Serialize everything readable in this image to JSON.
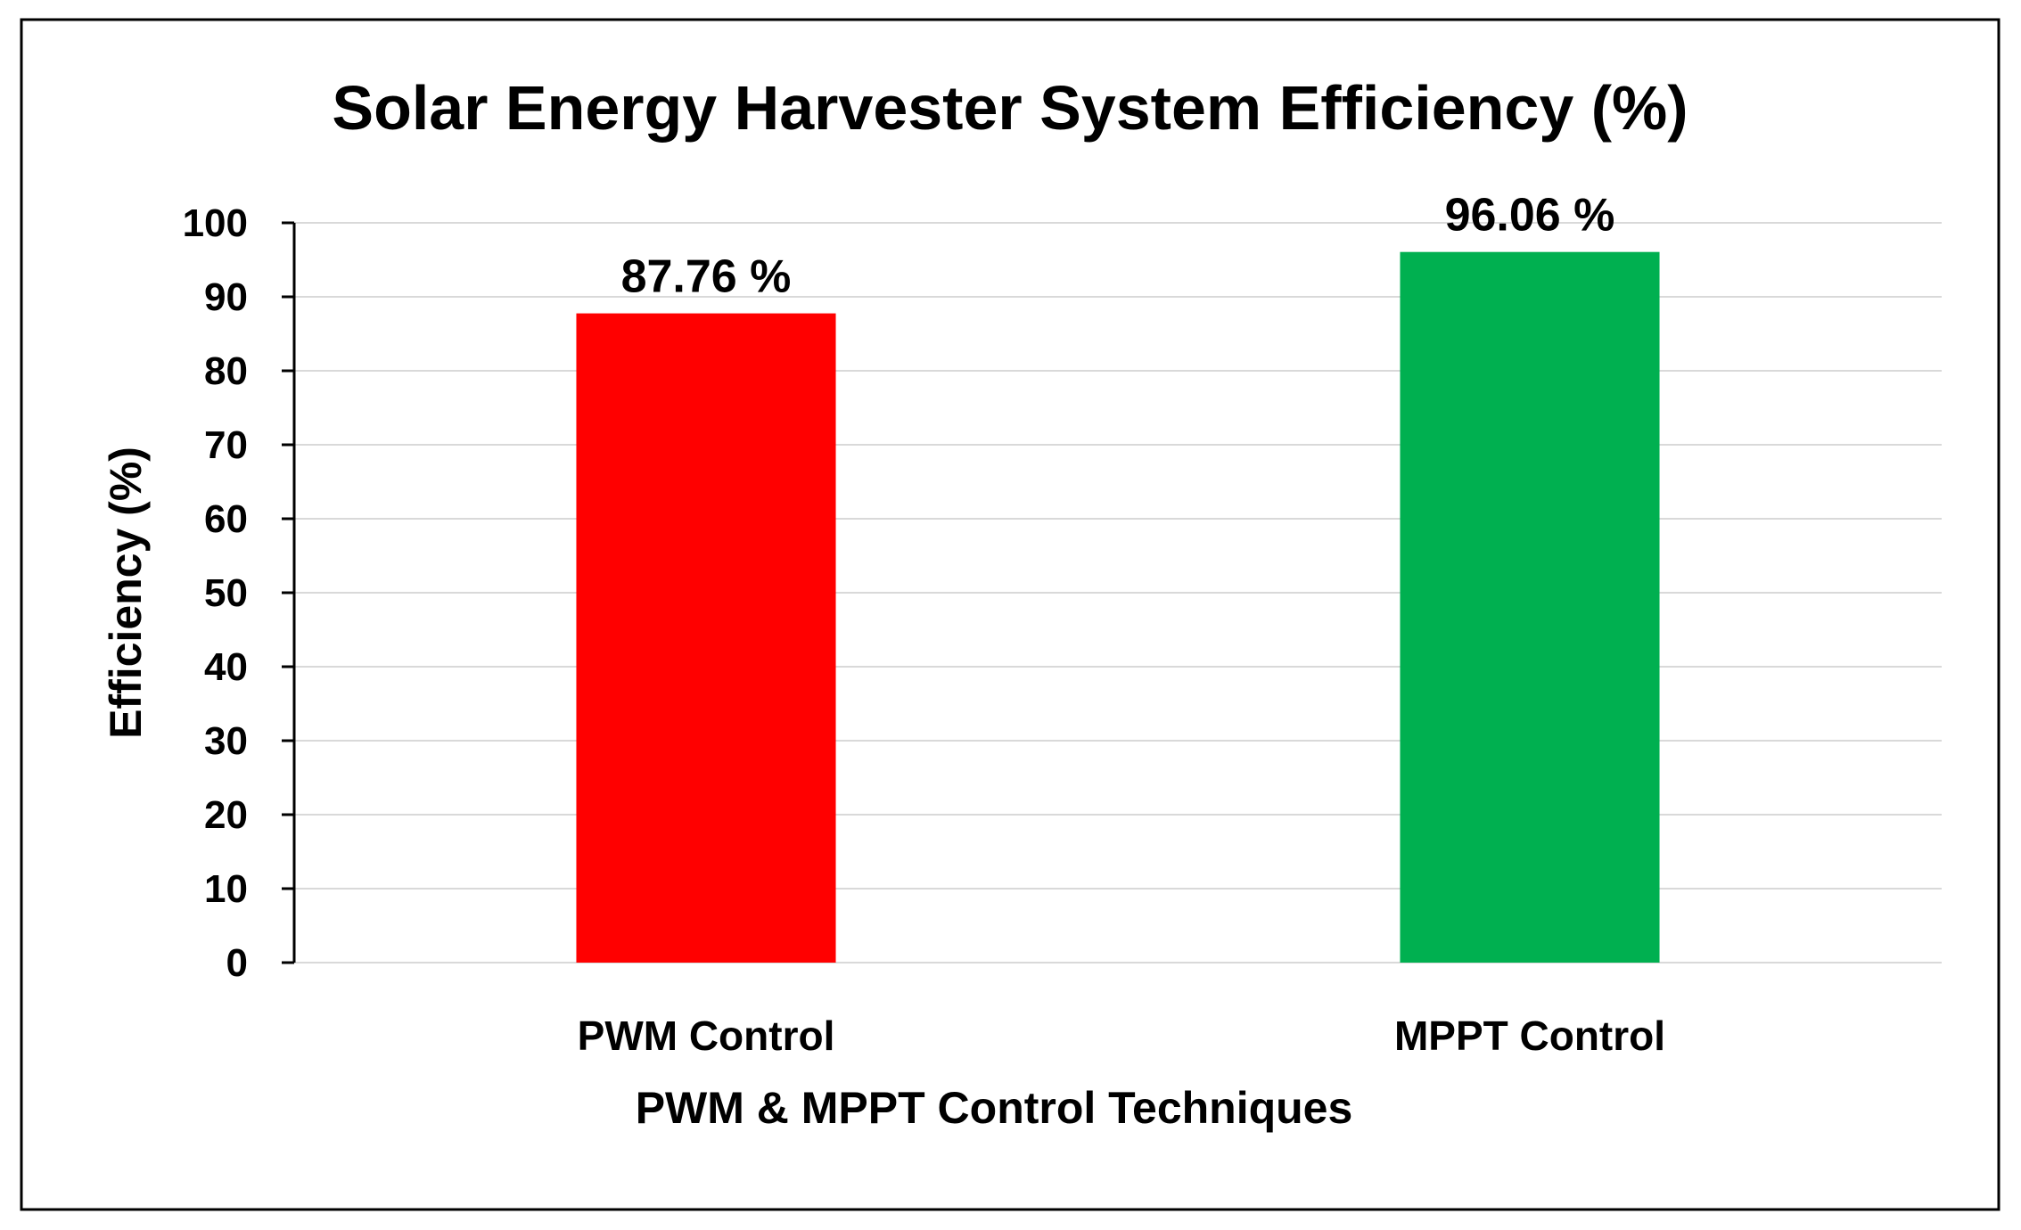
{
  "chart_data": {
    "type": "bar",
    "title": "Solar Energy Harvester System Efficiency (%)",
    "xlabel": "PWM & MPPT Control Techniques",
    "ylabel": "Efficiency (%)",
    "ylim": [
      0,
      100
    ],
    "yticks": [
      0,
      10,
      20,
      30,
      40,
      50,
      60,
      70,
      80,
      90,
      100
    ],
    "grid": true,
    "categories": [
      "PWM Control",
      "MPPT Control"
    ],
    "values": [
      87.76,
      96.06
    ],
    "data_labels": [
      "87.76 %",
      "96.06 %"
    ],
    "colors": [
      "#ff0000",
      "#00b050"
    ]
  }
}
